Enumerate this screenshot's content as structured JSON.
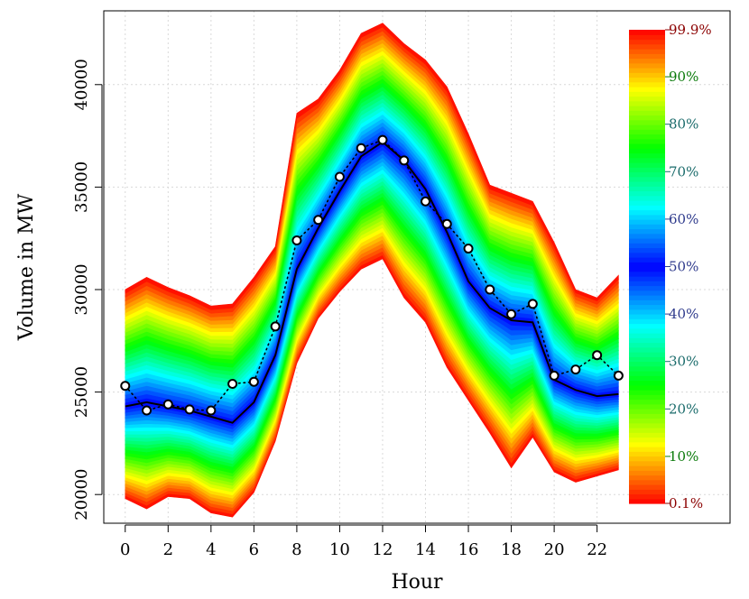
{
  "chart_data": {
    "type": "area",
    "subtype": "fan-chart",
    "title": "",
    "xlabel": "Hour",
    "ylabel": "Volume in MW",
    "xlim": [
      -1,
      28.2
    ],
    "ylim": [
      18600,
      43600
    ],
    "xticks": [
      0,
      2,
      4,
      6,
      8,
      10,
      12,
      14,
      16,
      18,
      20,
      22
    ],
    "xtick_labels": [
      "0",
      "2",
      "4",
      "6",
      "8",
      "10",
      "12",
      "14",
      "16",
      "18",
      "20",
      "22"
    ],
    "yticks": [
      20000,
      25000,
      30000,
      35000,
      40000
    ],
    "ytick_labels": [
      "20000",
      "25000",
      "30000",
      "35000",
      "40000"
    ],
    "grid": true,
    "x": [
      0,
      1,
      2,
      3,
      4,
      5,
      6,
      7,
      8,
      9,
      10,
      11,
      12,
      13,
      14,
      15,
      16,
      17,
      18,
      19,
      20,
      21,
      22,
      23
    ],
    "quantile_bands": {
      "lower_0_1": [
        19800,
        19300,
        19900,
        19800,
        19100,
        18900,
        20100,
        22600,
        26400,
        28600,
        29900,
        31000,
        31500,
        29600,
        28400,
        26200,
        24600,
        23000,
        21300,
        22800,
        21100,
        20600,
        20900,
        21200
      ],
      "median": [
        24300,
        24500,
        24300,
        24100,
        23800,
        23500,
        24500,
        26800,
        31000,
        33000,
        34800,
        36500,
        37200,
        36300,
        34900,
        32800,
        30400,
        29100,
        28500,
        28400,
        25600,
        25100,
        24800,
        24900
      ],
      "upper_99_9": [
        30000,
        30600,
        30100,
        29700,
        29200,
        29300,
        30600,
        32100,
        38600,
        39300,
        40700,
        42500,
        43000,
        42000,
        41200,
        39900,
        37600,
        35100,
        34700,
        34300,
        32300,
        30000,
        29600,
        30700
      ]
    },
    "series": [
      {
        "style": "solid-line",
        "values": [
          24300,
          24500,
          24300,
          24100,
          23800,
          23500,
          24500,
          26800,
          31000,
          33000,
          34800,
          36500,
          37200,
          36300,
          34900,
          32800,
          30400,
          29100,
          28500,
          28400,
          25600,
          25100,
          24800,
          24900
        ]
      },
      {
        "style": "dotted-line-with-circles",
        "values": [
          25300,
          24100,
          24400,
          24150,
          24100,
          25400,
          25500,
          28200,
          32400,
          33400,
          35500,
          36900,
          37300,
          36300,
          34300,
          33200,
          32000,
          30000,
          28800,
          29300,
          25800,
          26100,
          26800,
          25800
        ]
      }
    ],
    "legend": {
      "placement": "right",
      "type": "colorbar",
      "labels": [
        "0.1%",
        "10%",
        "20%",
        "30%",
        "40%",
        "50%",
        "60%",
        "70%",
        "80%",
        "90%",
        "99.9%"
      ],
      "label_levels": [
        0.001,
        0.1,
        0.2,
        0.3,
        0.4,
        0.5,
        0.6,
        0.7,
        0.8,
        0.9,
        0.999
      ]
    }
  }
}
